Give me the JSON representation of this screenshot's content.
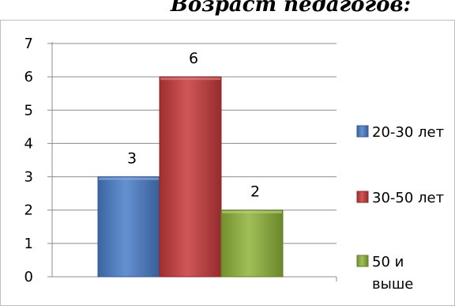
{
  "chart_data": {
    "type": "bar",
    "title": "Возраст педагогов:",
    "xlabel": "",
    "ylabel": "",
    "ylim": [
      0,
      7
    ],
    "yticks": [
      0,
      1,
      2,
      3,
      4,
      5,
      6,
      7
    ],
    "grid": true,
    "legend_position": "right",
    "series": [
      {
        "name": "20-30 лет",
        "value": 3,
        "color": "#4a7ec9",
        "label": "3"
      },
      {
        "name": "30-50 лет",
        "value": 6,
        "color": "#c8393a",
        "label": "6"
      },
      {
        "name": "50 и выше",
        "value": 2,
        "color": "#8fb43a",
        "label": "2"
      }
    ]
  }
}
